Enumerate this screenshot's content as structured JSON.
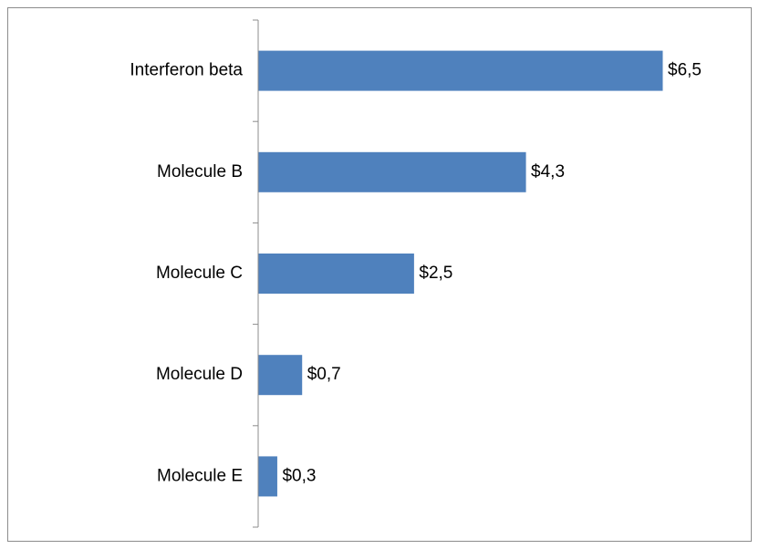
{
  "chart_data": {
    "type": "bar",
    "orientation": "horizontal",
    "categories": [
      "Interferon beta",
      "Molecule B",
      "Molecule C",
      "Molecule D",
      "Molecule E"
    ],
    "values": [
      6.5,
      4.3,
      2.5,
      0.7,
      0.3
    ],
    "data_labels": [
      "$6,5",
      "$4,3",
      "$2,5",
      "$0,7",
      "$0,3"
    ],
    "title": "",
    "xlabel": "",
    "ylabel": "",
    "xlim": [
      0,
      6.5
    ],
    "grid": false,
    "legend": "none",
    "bar_color": "#4f81bd"
  }
}
